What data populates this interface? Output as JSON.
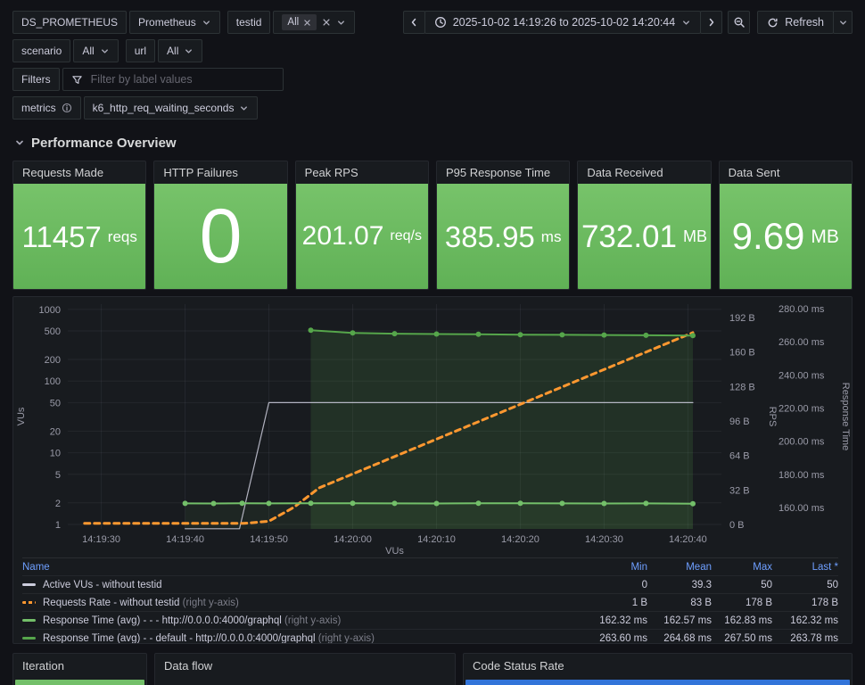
{
  "toolbar": {
    "datasource_label": "DS_PROMETHEUS",
    "datasource_value": "Prometheus",
    "testid_label": "testid",
    "testid_tag": "All",
    "scenario_label": "scenario",
    "scenario_value": "All",
    "url_label": "url",
    "url_value": "All",
    "filters_label": "Filters",
    "filters_placeholder": "Filter by label values",
    "metrics_label": "metrics",
    "metrics_value": "k6_http_req_waiting_seconds",
    "time_range": "2025-10-02 14:19:26 to 2025-10-02 14:20:44",
    "refresh_label": "Refresh"
  },
  "section": {
    "title": "Performance Overview"
  },
  "stats": [
    {
      "title": "Requests Made",
      "value": "11457",
      "unit": "reqs"
    },
    {
      "title": "HTTP Failures",
      "value": "0",
      "unit": ""
    },
    {
      "title": "Peak RPS",
      "value": "201.07",
      "unit": "req/s"
    },
    {
      "title": "P95 Response Time",
      "value": "385.95",
      "unit": "ms"
    },
    {
      "title": "Data Received",
      "value": "732.01",
      "unit": "MB"
    },
    {
      "title": "Data Sent",
      "value": "9.69",
      "unit": "MB"
    }
  ],
  "colors": {
    "stat_green_top": "#77c36a",
    "stat_green_bottom": "#60b156",
    "orange": "#ff9830",
    "green": "#73bf69",
    "green_dark": "#56a64b",
    "gray_series": "#ccccdc",
    "blue_bar": "#3274d9",
    "link_blue": "#6e9fff"
  },
  "chart_data": {
    "type": "line",
    "t_min": 0,
    "t_max": 78,
    "x_axis_label": "VUs",
    "x_ticks": [
      {
        "t": 4,
        "label": "14:19:30"
      },
      {
        "t": 14,
        "label": "14:19:40"
      },
      {
        "t": 24,
        "label": "14:19:50"
      },
      {
        "t": 34,
        "label": "14:20:00"
      },
      {
        "t": 44,
        "label": "14:20:10"
      },
      {
        "t": 54,
        "label": "14:20:20"
      },
      {
        "t": 64,
        "label": "14:20:30"
      },
      {
        "t": 74,
        "label": "14:20:40"
      }
    ],
    "axes": {
      "vus": {
        "title": "VUs",
        "log": true,
        "min": 0.866,
        "max": 1183,
        "ticks": [
          {
            "v": 1,
            "label": "1"
          },
          {
            "v": 2,
            "label": "2"
          },
          {
            "v": 5,
            "label": "5"
          },
          {
            "v": 10,
            "label": "10"
          },
          {
            "v": 20,
            "label": "20"
          },
          {
            "v": 50,
            "label": "50"
          },
          {
            "v": 100,
            "label": "100"
          },
          {
            "v": 200,
            "label": "200"
          },
          {
            "v": 500,
            "label": "500"
          },
          {
            "v": 1000,
            "label": "1000"
          }
        ]
      },
      "rps": {
        "title": "RPS",
        "log": false,
        "min": -4.1,
        "max": 204.4,
        "ticks": [
          {
            "v": 0,
            "label": "0 B"
          },
          {
            "v": 32,
            "label": "32 B"
          },
          {
            "v": 64,
            "label": "64 B"
          },
          {
            "v": 96,
            "label": "96 B"
          },
          {
            "v": 128,
            "label": "128 B"
          },
          {
            "v": 160,
            "label": "160 B"
          },
          {
            "v": 192,
            "label": "192 B"
          }
        ]
      },
      "rt": {
        "title": "Response Time",
        "log": false,
        "min": 147.1,
        "max": 282.7,
        "ticks": [
          {
            "v": 160,
            "label": "160.00 ms"
          },
          {
            "v": 180,
            "label": "180.00 ms"
          },
          {
            "v": 200,
            "label": "200.00 ms"
          },
          {
            "v": 220,
            "label": "220.00 ms"
          },
          {
            "v": 240,
            "label": "240.00 ms"
          },
          {
            "v": 260,
            "label": "260.00 ms"
          },
          {
            "v": 280,
            "label": "280.00 ms"
          }
        ]
      }
    },
    "series": [
      {
        "name": "Active VUs - without testid",
        "axis": "vus",
        "color": "#ccccdc",
        "width": 1.2,
        "opacity": 0.85,
        "points": [
          [
            14,
            0.87
          ],
          [
            20.5,
            0.87
          ],
          [
            24,
            50
          ],
          [
            74.6,
            50
          ]
        ]
      },
      {
        "name": "Requests Rate - without testid",
        "axis": "rps",
        "color": "#ff9830",
        "width": 3,
        "dash": [
          6,
          5
        ],
        "points": [
          [
            2,
            1
          ],
          [
            21,
            1
          ],
          [
            24,
            3
          ],
          [
            27,
            16
          ],
          [
            30,
            34
          ],
          [
            74.6,
            178
          ]
        ]
      },
      {
        "name": "Response Time (avg) - - - http://0.0.0.0:4000/graphql",
        "axis": "rt",
        "color": "#73bf69",
        "width": 2,
        "dots": true,
        "fill": 0.07,
        "points": [
          [
            14,
            162.5
          ],
          [
            17.4,
            162.45
          ],
          [
            20.8,
            162.6
          ],
          [
            24,
            162.5
          ],
          [
            29,
            162.55
          ],
          [
            34,
            162.6
          ],
          [
            39,
            162.5
          ],
          [
            44,
            162.45
          ],
          [
            49,
            162.55
          ],
          [
            54,
            162.6
          ],
          [
            59,
            162.5
          ],
          [
            64,
            162.45
          ],
          [
            69,
            162.5
          ],
          [
            74.6,
            162.32
          ]
        ]
      },
      {
        "name": "Response Time (avg) - - default - http://0.0.0.0:4000/graphql",
        "axis": "rt",
        "color": "#56a64b",
        "width": 2,
        "dots": true,
        "fill": 0.16,
        "points": [
          [
            29,
            267.0
          ],
          [
            34,
            265.3
          ],
          [
            39,
            264.9
          ],
          [
            44,
            264.7
          ],
          [
            49,
            264.5
          ],
          [
            54,
            264.3
          ],
          [
            59,
            264.2
          ],
          [
            64,
            264.1
          ],
          [
            69,
            263.9
          ],
          [
            74.6,
            263.78
          ]
        ]
      }
    ],
    "legend": {
      "headers": [
        "Name",
        "Min",
        "Mean",
        "Max",
        "Last *"
      ],
      "rows": [
        {
          "name": "Active VUs - without testid",
          "note": "",
          "min": "0",
          "mean": "39.3",
          "max": "50",
          "last": "50",
          "color": "#ccccdc",
          "dashed": false
        },
        {
          "name": "Requests Rate - without testid",
          "note": "(right y-axis)",
          "min": "1 B",
          "mean": "83 B",
          "max": "178 B",
          "last": "178 B",
          "color": "#ff9830",
          "dashed": true
        },
        {
          "name": "Response Time (avg) - - - http://0.0.0.0:4000/graphql",
          "note": "(right y-axis)",
          "min": "162.32 ms",
          "mean": "162.57 ms",
          "max": "162.83 ms",
          "last": "162.32 ms",
          "color": "#73bf69",
          "dashed": false
        },
        {
          "name": "Response Time (avg) - - default - http://0.0.0.0:4000/graphql",
          "note": "(right y-axis)",
          "min": "263.60 ms",
          "mean": "264.68 ms",
          "max": "267.50 ms",
          "last": "263.78 ms",
          "color": "#56a64b",
          "dashed": false
        }
      ]
    }
  },
  "bottom_panels": [
    {
      "title": "Iteration",
      "bar_color": "#73bf69"
    },
    {
      "title": "Data flow",
      "bar_color": ""
    },
    {
      "title": "Code Status Rate",
      "bar_color": "#3274d9"
    }
  ]
}
